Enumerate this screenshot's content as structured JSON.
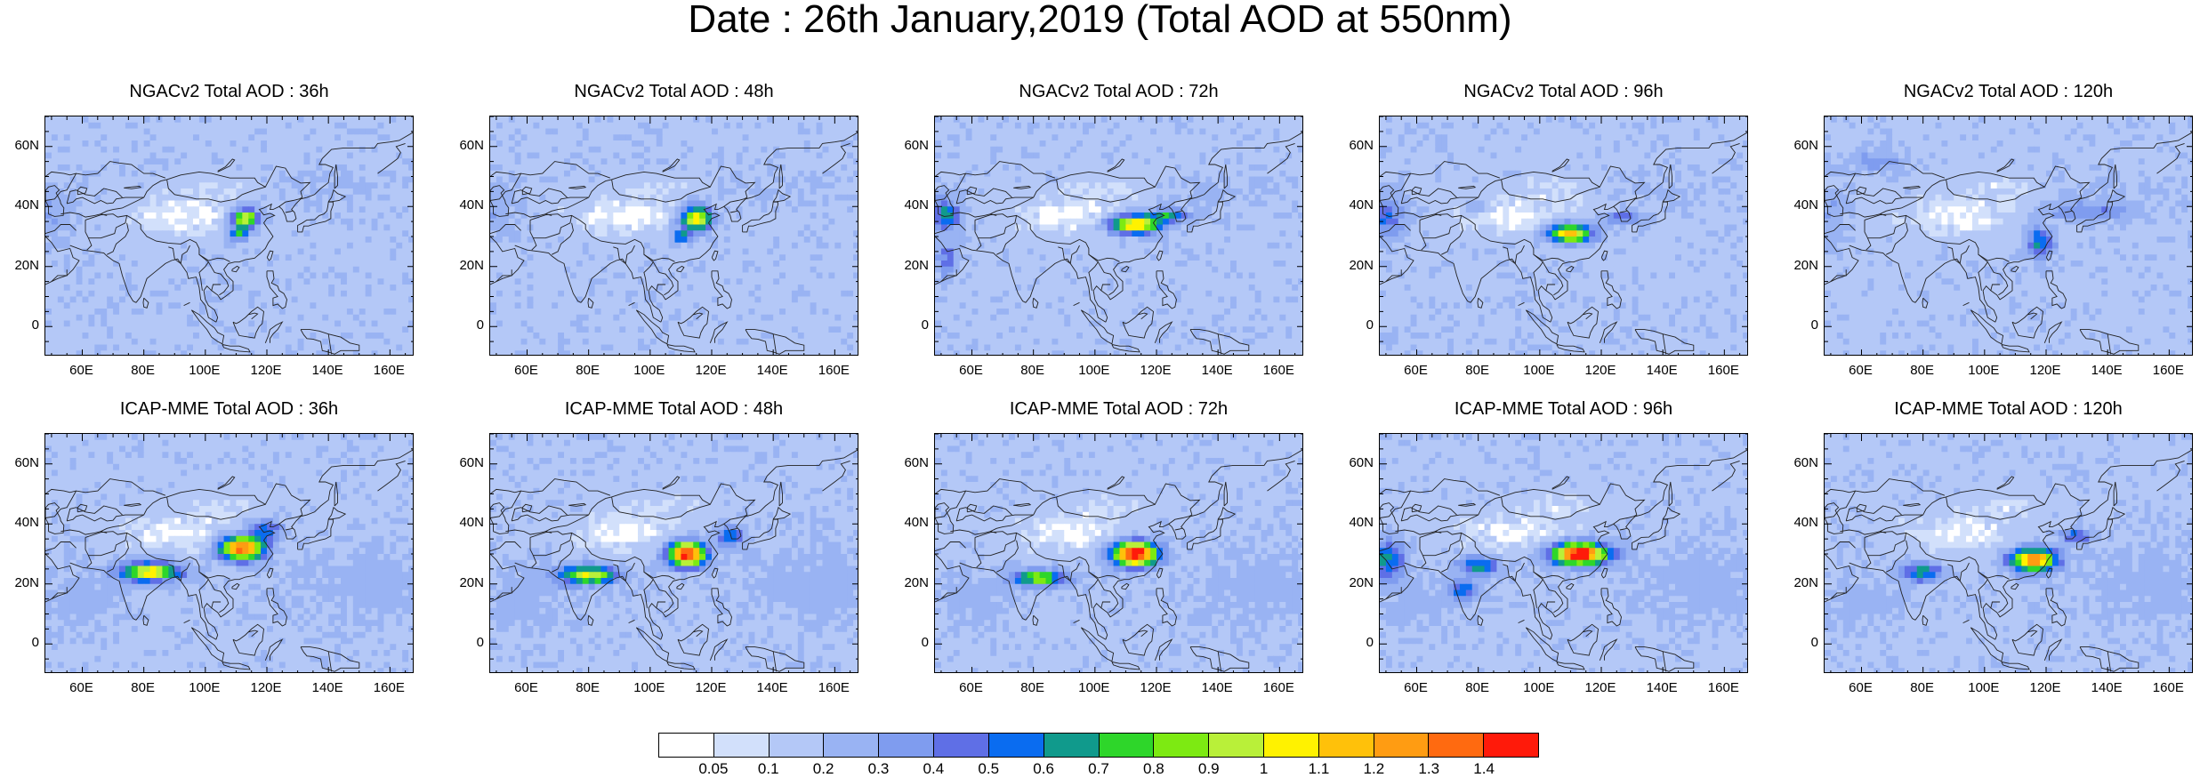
{
  "title": "Date : 26th January,2019 (Total AOD at 550nm)",
  "panels": [
    {
      "title": "NGACv2 Total AOD : 36h",
      "model": "NGACv2",
      "lead": "36h"
    },
    {
      "title": "NGACv2 Total AOD : 48h",
      "model": "NGACv2",
      "lead": "48h"
    },
    {
      "title": "NGACv2 Total AOD : 72h",
      "model": "NGACv2",
      "lead": "72h"
    },
    {
      "title": "NGACv2 Total AOD : 96h",
      "model": "NGACv2",
      "lead": "96h"
    },
    {
      "title": "NGACv2 Total AOD : 120h",
      "model": "NGACv2",
      "lead": "120h"
    },
    {
      "title": "ICAP-MME Total AOD : 36h",
      "model": "ICAP-MME",
      "lead": "36h"
    },
    {
      "title": "ICAP-MME Total AOD : 48h",
      "model": "ICAP-MME",
      "lead": "48h"
    },
    {
      "title": "ICAP-MME Total AOD : 72h",
      "model": "ICAP-MME",
      "lead": "72h"
    },
    {
      "title": "ICAP-MME Total AOD : 96h",
      "model": "ICAP-MME",
      "lead": "96h"
    },
    {
      "title": "ICAP-MME Total AOD : 120h",
      "model": "ICAP-MME",
      "lead": "120h"
    }
  ],
  "axes": {
    "lon_labels": [
      "60E",
      "80E",
      "100E",
      "120E",
      "140E",
      "160E"
    ],
    "lat_labels": [
      "60N",
      "40N",
      "20N",
      "0"
    ],
    "lon_range": [
      48,
      168
    ],
    "lat_range": [
      -10,
      70
    ]
  },
  "colorbar": {
    "labels": [
      "0.05",
      "0.1",
      "0.2",
      "0.3",
      "0.4",
      "0.5",
      "0.6",
      "0.7",
      "0.8",
      "0.9",
      "1",
      "1.1",
      "1.2",
      "1.3",
      "1.4"
    ],
    "colors": [
      "#ffffff",
      "#d2e0fb",
      "#b4c8f7",
      "#99b3f3",
      "#7f9cef",
      "#5f6fe6",
      "#0a6cf0",
      "#109a8c",
      "#2ed62a",
      "#7dea12",
      "#b9f039",
      "#fff200",
      "#ffc10a",
      "#ff9c12",
      "#ff6a10",
      "#ff1a0a"
    ]
  }
}
